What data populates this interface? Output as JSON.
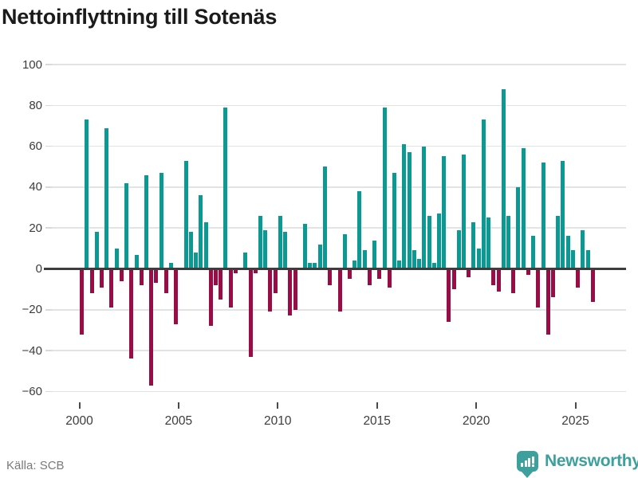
{
  "title": "Nettoinflyttning till Sotenäs",
  "footer": {
    "source": "Källa: SCB",
    "brand": "Newsworthy"
  },
  "colors": {
    "positive": "#0a9a93",
    "negative": "#9a0c46",
    "brand_teal": "#3da09c",
    "gridline": "#e3e3e3",
    "axis": "#3d3d3d",
    "title_text": "#1b1b1b",
    "tick_text": "#3c3c3c",
    "source_text": "#7a7a7a"
  },
  "chart_data": {
    "type": "bar",
    "title": "Nettoinflyttning till Sotenäs",
    "period": "quarterly",
    "start": "2000 Q1",
    "end": "2025 Q4",
    "values": [
      -32,
      73,
      -12,
      18,
      -9,
      69,
      -19,
      10,
      -6,
      42,
      -44,
      7,
      -8,
      46,
      -57,
      -7,
      47,
      -12,
      3,
      -27,
      0,
      53,
      18,
      8,
      36,
      23,
      -28,
      -8,
      -15,
      79,
      -19,
      -2,
      0,
      8,
      -43,
      -2,
      26,
      19,
      -21,
      -12,
      26,
      18,
      -23,
      -20,
      0,
      22,
      3,
      3,
      12,
      50,
      -8,
      0,
      -21,
      17,
      -5,
      4,
      38,
      9,
      -8,
      14,
      -5,
      79,
      -9,
      47,
      4,
      61,
      57,
      9,
      5,
      60,
      26,
      3,
      27,
      55,
      -26,
      -10,
      19,
      56,
      -4,
      23,
      10,
      73,
      25,
      -8,
      -11,
      88,
      26,
      -12,
      40,
      59,
      -3,
      16,
      -19,
      52,
      -32,
      -14,
      26,
      53,
      16,
      9,
      -9,
      19,
      9,
      -16
    ],
    "y_ticks": [
      100,
      80,
      60,
      40,
      20,
      0,
      -20,
      -40,
      -60
    ],
    "x_ticks": [
      2000,
      2005,
      2010,
      2015,
      2020,
      2025
    ],
    "ylim": [
      -60,
      100
    ],
    "grid": true,
    "legend": false,
    "positive_color": "#0a9a93",
    "negative_color": "#9a0c46"
  }
}
